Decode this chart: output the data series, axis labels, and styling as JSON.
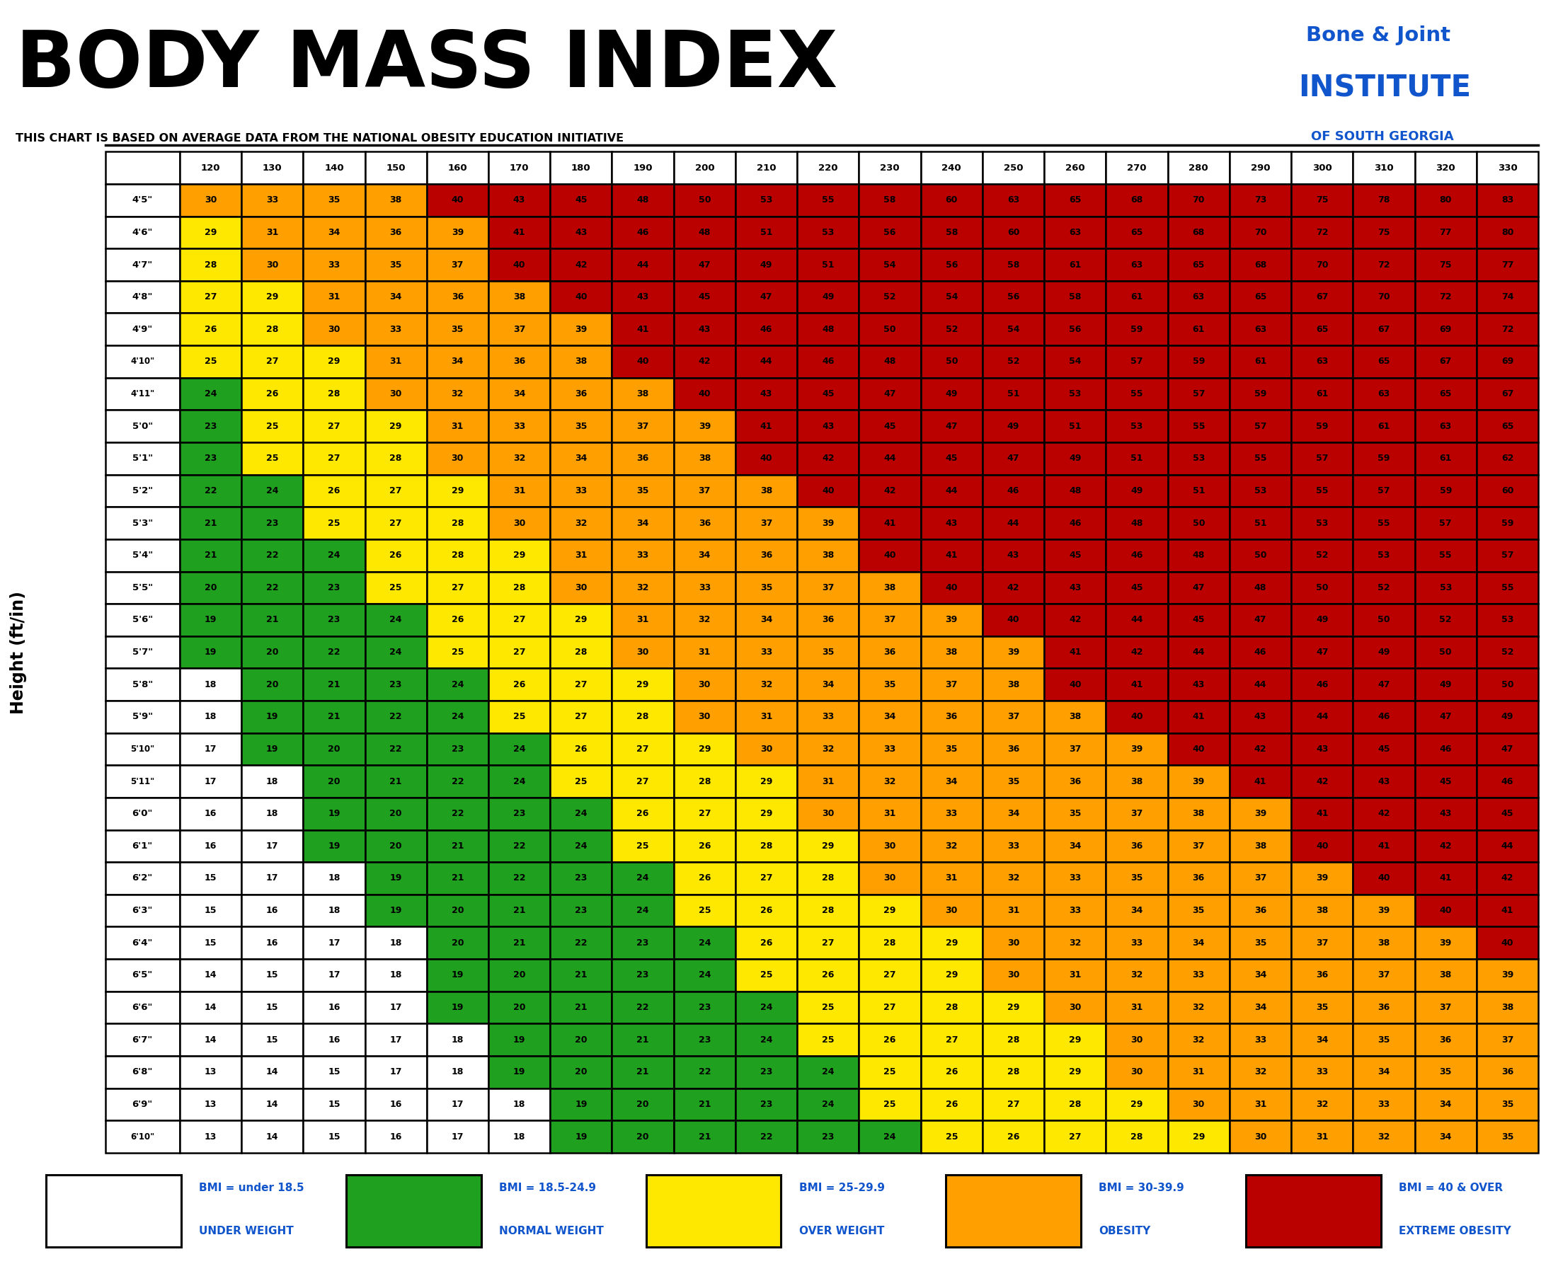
{
  "title": "BODY MASS INDEX",
  "subtitle": "THIS CHART IS BASED ON AVERAGE DATA FROM THE NATIONAL OBESITY EDUCATION INITIATIVE",
  "ylabel": "Height (ft/in)",
  "weight_cols": [
    120,
    130,
    140,
    150,
    160,
    170,
    180,
    190,
    200,
    210,
    220,
    230,
    240,
    250,
    260,
    270,
    280,
    290,
    300,
    310,
    320,
    330
  ],
  "height_rows": [
    "4'5\"",
    "4'6\"",
    "4'7\"",
    "4'8\"",
    "4'9\"",
    "4'10\"",
    "4'11\"",
    "5'0\"",
    "5'1\"",
    "5'2\"",
    "5'3\"",
    "5'4\"",
    "5'5\"",
    "5'6\"",
    "5'7\"",
    "5'8\"",
    "5'9\"",
    "5'10\"",
    "5'11\"",
    "6'0\"",
    "6'1\"",
    "6'2\"",
    "6'3\"",
    "6'4\"",
    "6'5\"",
    "6'6\"",
    "6'7\"",
    "6'8\"",
    "6'9\"",
    "6'10\""
  ],
  "bmi_data": [
    [
      30,
      33,
      35,
      38,
      40,
      43,
      45,
      48,
      50,
      53,
      55,
      58,
      60,
      63,
      65,
      68,
      70,
      73,
      75,
      78,
      80,
      83
    ],
    [
      29,
      31,
      34,
      36,
      39,
      41,
      43,
      46,
      48,
      51,
      53,
      56,
      58,
      60,
      63,
      65,
      68,
      70,
      72,
      75,
      77,
      80
    ],
    [
      28,
      30,
      33,
      35,
      37,
      40,
      42,
      44,
      47,
      49,
      51,
      54,
      56,
      58,
      61,
      63,
      65,
      68,
      70,
      72,
      75,
      77
    ],
    [
      27,
      29,
      31,
      34,
      36,
      38,
      40,
      43,
      45,
      47,
      49,
      52,
      54,
      56,
      58,
      61,
      63,
      65,
      67,
      70,
      72,
      74
    ],
    [
      26,
      28,
      30,
      33,
      35,
      37,
      39,
      41,
      43,
      46,
      48,
      50,
      52,
      54,
      56,
      59,
      61,
      63,
      65,
      67,
      69,
      72
    ],
    [
      25,
      27,
      29,
      31,
      34,
      36,
      38,
      40,
      42,
      44,
      46,
      48,
      50,
      52,
      54,
      57,
      59,
      61,
      63,
      65,
      67,
      69
    ],
    [
      24,
      26,
      28,
      30,
      32,
      34,
      36,
      38,
      40,
      43,
      45,
      47,
      49,
      51,
      53,
      55,
      57,
      59,
      61,
      63,
      65,
      67
    ],
    [
      23,
      25,
      27,
      29,
      31,
      33,
      35,
      37,
      39,
      41,
      43,
      45,
      47,
      49,
      51,
      53,
      55,
      57,
      59,
      61,
      63,
      65
    ],
    [
      23,
      25,
      27,
      28,
      30,
      32,
      34,
      36,
      38,
      40,
      42,
      44,
      45,
      47,
      49,
      51,
      53,
      55,
      57,
      59,
      61,
      62
    ],
    [
      22,
      24,
      26,
      27,
      29,
      31,
      33,
      35,
      37,
      38,
      40,
      42,
      44,
      46,
      48,
      49,
      51,
      53,
      55,
      57,
      59,
      60
    ],
    [
      21,
      23,
      25,
      27,
      28,
      30,
      32,
      34,
      36,
      37,
      39,
      41,
      43,
      44,
      46,
      48,
      50,
      51,
      53,
      55,
      57,
      59
    ],
    [
      21,
      22,
      24,
      26,
      28,
      29,
      31,
      33,
      34,
      36,
      38,
      40,
      41,
      43,
      45,
      46,
      48,
      50,
      52,
      53,
      55,
      57
    ],
    [
      20,
      22,
      23,
      25,
      27,
      28,
      30,
      32,
      33,
      35,
      37,
      38,
      40,
      42,
      43,
      45,
      47,
      48,
      50,
      52,
      53,
      55
    ],
    [
      19,
      21,
      23,
      24,
      26,
      27,
      29,
      31,
      32,
      34,
      36,
      37,
      39,
      40,
      42,
      44,
      45,
      47,
      49,
      50,
      52,
      53
    ],
    [
      19,
      20,
      22,
      24,
      25,
      27,
      28,
      30,
      31,
      33,
      35,
      36,
      38,
      39,
      41,
      42,
      44,
      46,
      47,
      49,
      50,
      52
    ],
    [
      18,
      20,
      21,
      23,
      24,
      26,
      27,
      29,
      30,
      32,
      34,
      35,
      37,
      38,
      40,
      41,
      43,
      44,
      46,
      47,
      49,
      50
    ],
    [
      18,
      19,
      21,
      22,
      24,
      25,
      27,
      28,
      30,
      31,
      33,
      34,
      36,
      37,
      38,
      40,
      41,
      43,
      44,
      46,
      47,
      49
    ],
    [
      17,
      19,
      20,
      22,
      23,
      24,
      26,
      27,
      29,
      30,
      32,
      33,
      35,
      36,
      37,
      39,
      40,
      42,
      43,
      45,
      46,
      47
    ],
    [
      17,
      18,
      20,
      21,
      22,
      24,
      25,
      27,
      28,
      29,
      31,
      32,
      34,
      35,
      36,
      38,
      39,
      41,
      42,
      43,
      45,
      46
    ],
    [
      16,
      18,
      19,
      20,
      22,
      23,
      24,
      26,
      27,
      29,
      30,
      31,
      33,
      34,
      35,
      37,
      38,
      39,
      41,
      42,
      43,
      45
    ],
    [
      16,
      17,
      19,
      20,
      21,
      22,
      24,
      25,
      26,
      28,
      29,
      30,
      32,
      33,
      34,
      36,
      37,
      38,
      40,
      41,
      42,
      44
    ],
    [
      15,
      17,
      18,
      19,
      21,
      22,
      23,
      24,
      26,
      27,
      28,
      30,
      31,
      32,
      33,
      35,
      36,
      37,
      39,
      40,
      41,
      42
    ],
    [
      15,
      16,
      18,
      19,
      20,
      21,
      23,
      24,
      25,
      26,
      28,
      29,
      30,
      31,
      33,
      34,
      35,
      36,
      38,
      39,
      40,
      41
    ],
    [
      15,
      16,
      17,
      18,
      20,
      21,
      22,
      23,
      24,
      26,
      27,
      28,
      29,
      30,
      32,
      33,
      34,
      35,
      37,
      38,
      39,
      40
    ],
    [
      14,
      15,
      17,
      18,
      19,
      20,
      21,
      23,
      24,
      25,
      26,
      27,
      29,
      30,
      31,
      32,
      33,
      34,
      36,
      37,
      38,
      39
    ],
    [
      14,
      15,
      16,
      17,
      19,
      20,
      21,
      22,
      23,
      24,
      25,
      27,
      28,
      29,
      30,
      31,
      32,
      34,
      35,
      36,
      37,
      38
    ],
    [
      14,
      15,
      16,
      17,
      18,
      19,
      20,
      21,
      23,
      24,
      25,
      26,
      27,
      28,
      29,
      30,
      32,
      33,
      34,
      35,
      36,
      37
    ],
    [
      13,
      14,
      15,
      17,
      18,
      19,
      20,
      21,
      22,
      23,
      24,
      25,
      26,
      28,
      29,
      30,
      31,
      32,
      33,
      34,
      35,
      36
    ],
    [
      13,
      14,
      15,
      16,
      17,
      18,
      19,
      20,
      21,
      23,
      24,
      25,
      26,
      27,
      28,
      29,
      30,
      31,
      32,
      33,
      34,
      35
    ],
    [
      13,
      14,
      15,
      16,
      17,
      18,
      19,
      20,
      21,
      22,
      23,
      24,
      25,
      26,
      27,
      28,
      29,
      30,
      31,
      32,
      34,
      35
    ]
  ],
  "color_underweight": "#FFFFFF",
  "color_normal": "#1FA01F",
  "color_overweight": "#FFE800",
  "color_obese": "#FFA000",
  "color_extreme": "#BB0000",
  "background_color": "#FFFFFF",
  "inst_line1": "Bone & Joint",
  "inst_line2": "INSTITUTE",
  "inst_line3": "OF SOUTH GEORGIA",
  "legend_labels_line1": [
    "BMI = under 18.5",
    "BMI = 18.5-24.9",
    "BMI = 25-29.9",
    "BMI = 30-39.9",
    "BMI = 40 & OVER"
  ],
  "legend_labels_line2": [
    "UNDER WEIGHT",
    "NORMAL WEIGHT",
    "OVER WEIGHT",
    "OBESITY",
    "EXTREME OBESITY"
  ]
}
